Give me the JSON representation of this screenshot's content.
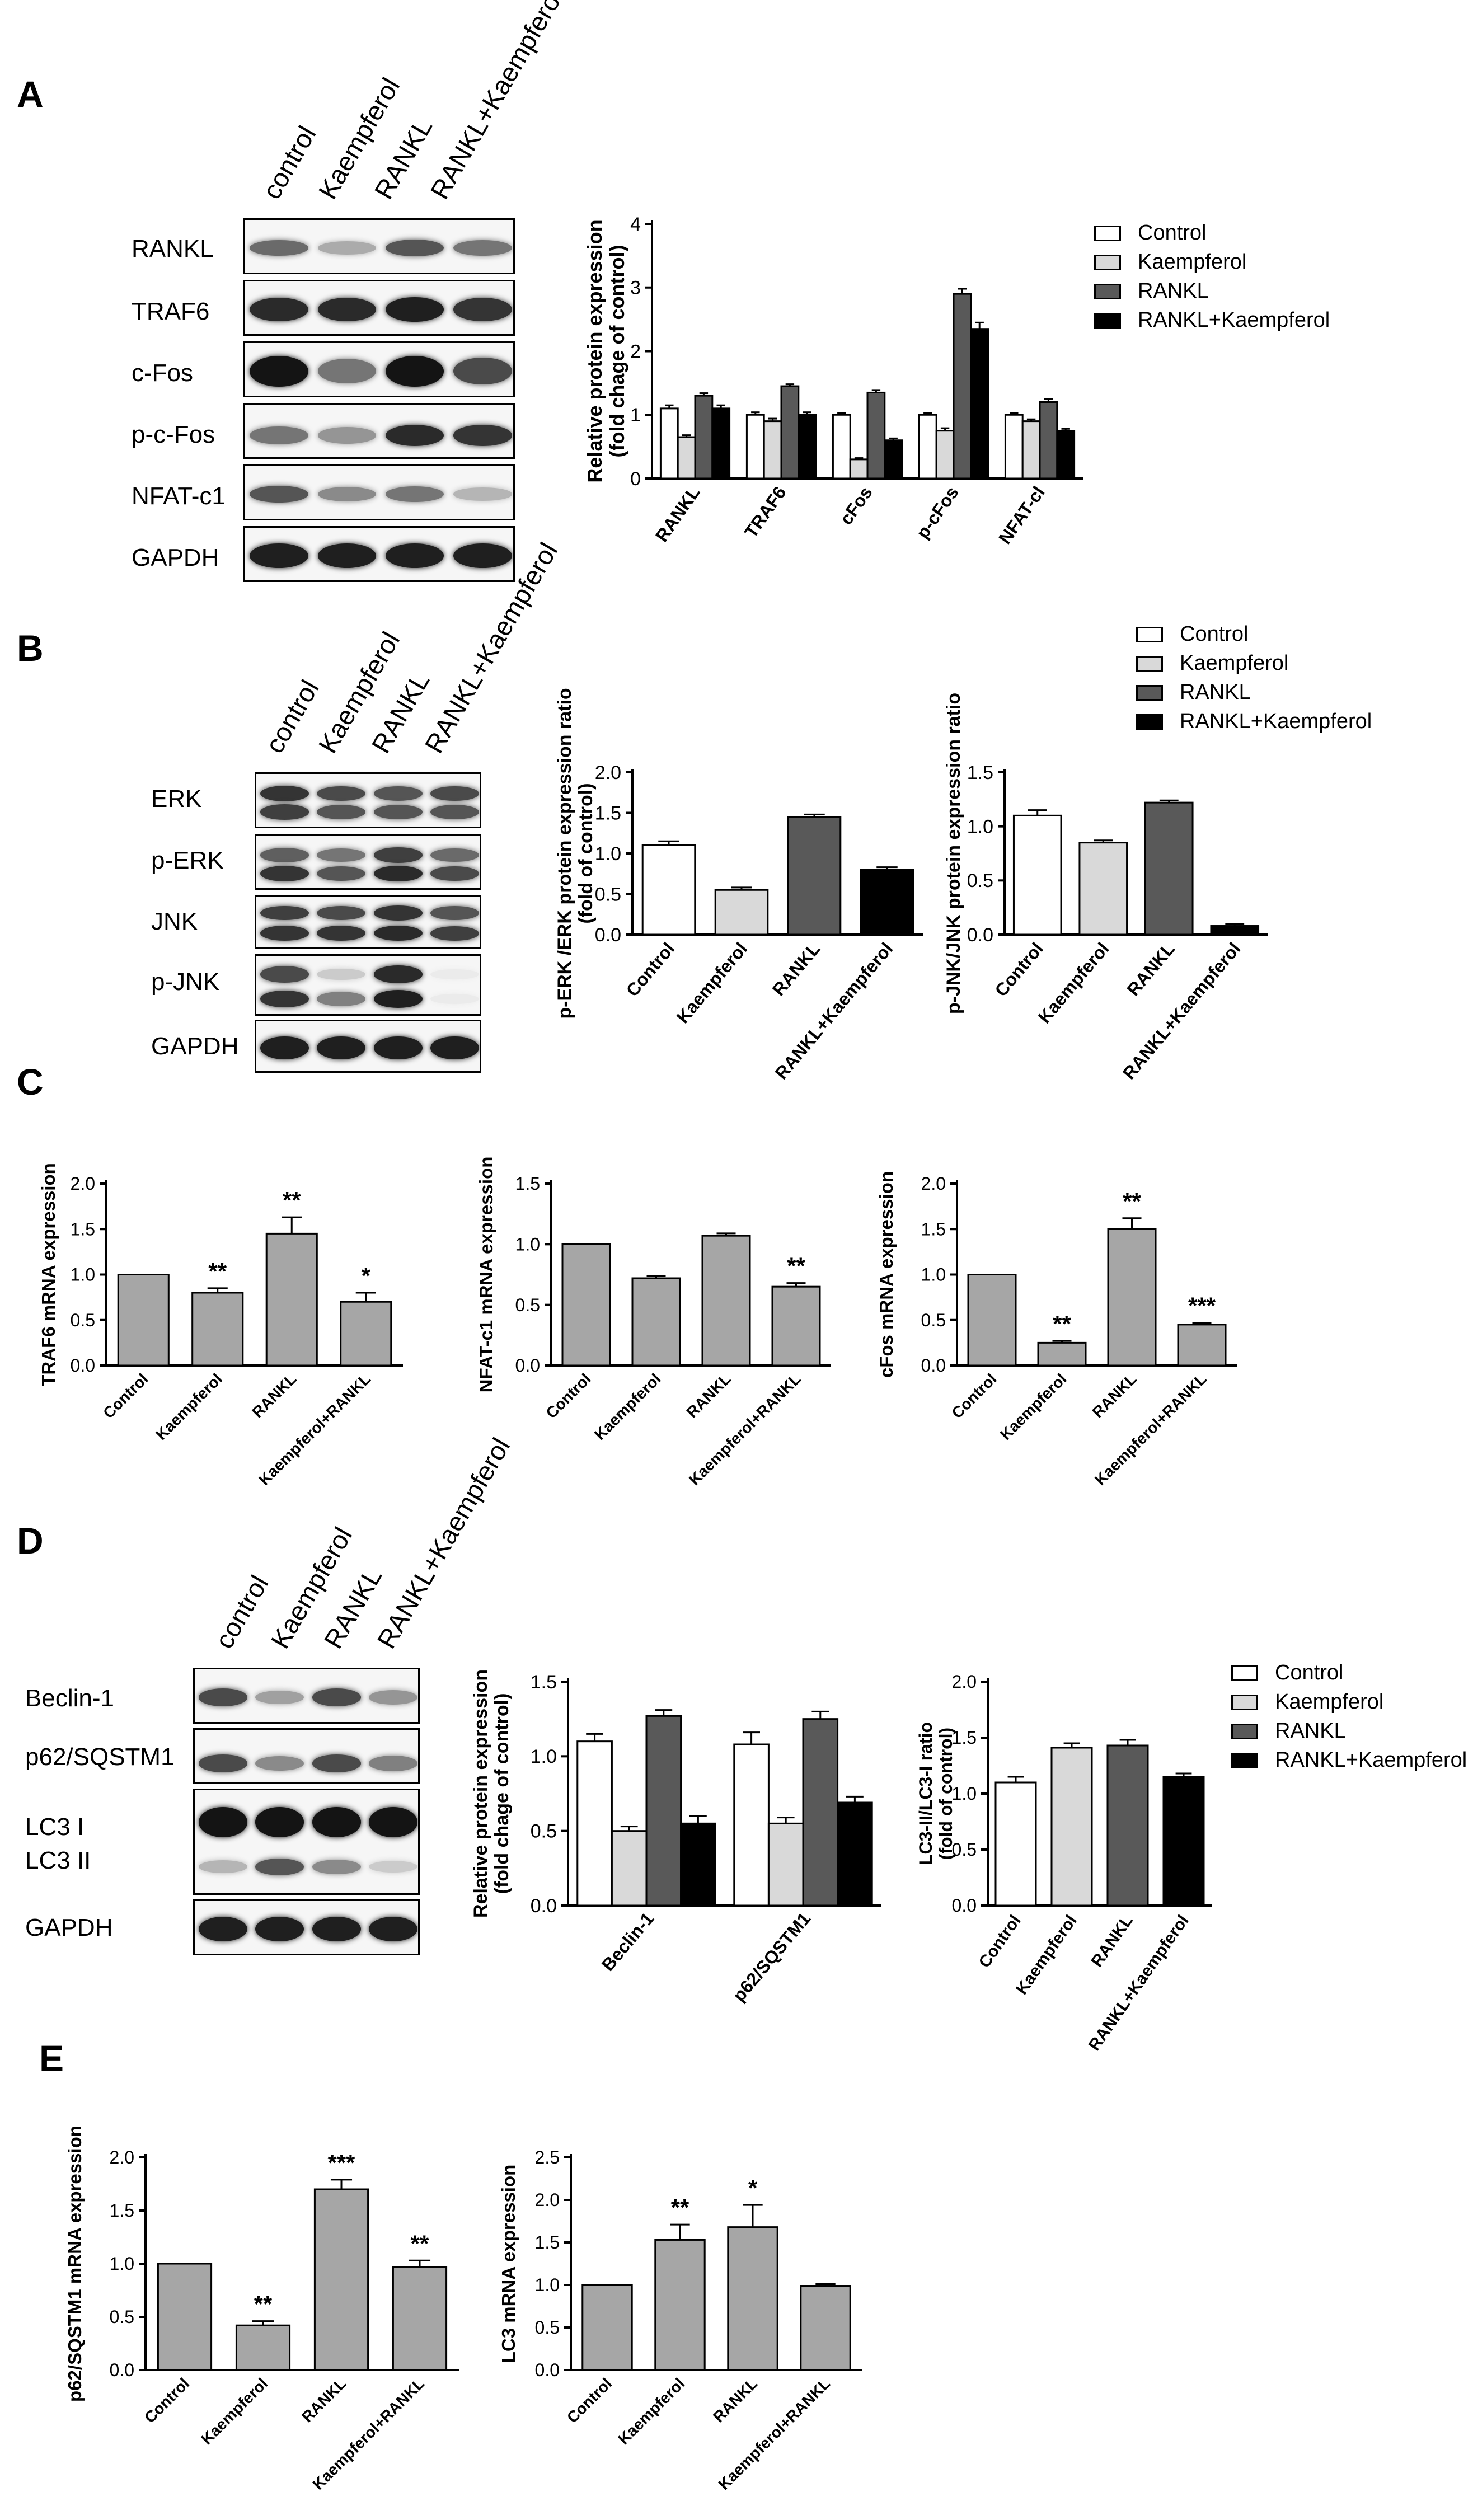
{
  "panels": {
    "A": {
      "letter": "A",
      "lanes": [
        "control",
        "Kaempferol",
        "RANKL",
        "RANKL+Kaempferol"
      ],
      "rows": [
        "RANKL",
        "TRAF6",
        "c-Fos",
        "p-c-Fos",
        "NFAT-c1",
        "GAPDH"
      ],
      "legend": [
        "Control",
        "Kaempferol",
        "RANKL",
        "RANKL+Kaempferol"
      ]
    },
    "B": {
      "letter": "B",
      "lanes": [
        "control",
        "Kaempferol",
        "RANKL",
        "RANKL+Kaempferol"
      ],
      "rows": [
        "ERK",
        "p-ERK",
        "JNK",
        "p-JNK",
        "GAPDH"
      ],
      "legend": [
        "Control",
        "Kaempferol",
        "RANKL",
        "RANKL+Kaempferol"
      ]
    },
    "C": {
      "letter": "C"
    },
    "D": {
      "letter": "D",
      "lanes": [
        "control",
        "Kaempferol",
        "RANKL",
        "RANKL+Kaempferol"
      ],
      "rows": [
        "Beclin-1",
        "p62/SQSTM1",
        "LC3 I",
        "LC3 II",
        "GAPDH"
      ],
      "legend": [
        "Control",
        "Kaempferol",
        "RANKL",
        "RANKL+Kaempferol"
      ]
    },
    "E": {
      "letter": "E"
    }
  },
  "colors": {
    "control": "#ffffff",
    "kaempferol": "#d9d9d9",
    "rankl": "#595959",
    "rankl_kaempferol": "#000000",
    "mrna_bar": "#a6a6a6"
  },
  "chart_data": [
    {
      "id": "A-protein",
      "type": "bar",
      "categories": [
        "RANKL",
        "TRAF6",
        "cFos",
        "p-cFos",
        "NFAT-cl"
      ],
      "series": [
        {
          "name": "Control",
          "values": [
            1.1,
            1.0,
            1.0,
            1.0,
            1.0
          ],
          "errors": [
            0.05,
            0.04,
            0.03,
            0.03,
            0.03
          ]
        },
        {
          "name": "Kaempferol",
          "values": [
            0.65,
            0.9,
            0.3,
            0.75,
            0.9
          ],
          "errors": [
            0.03,
            0.04,
            0.02,
            0.04,
            0.03
          ]
        },
        {
          "name": "RANKL",
          "values": [
            1.3,
            1.45,
            1.35,
            2.9,
            1.2
          ],
          "errors": [
            0.04,
            0.03,
            0.04,
            0.08,
            0.05
          ]
        },
        {
          "name": "RANKL+Kaempferol",
          "values": [
            1.1,
            1.0,
            0.6,
            2.35,
            0.75
          ],
          "errors": [
            0.05,
            0.04,
            0.03,
            0.1,
            0.03
          ]
        }
      ],
      "ylabel": "Relative protein expression (fold chage of control)",
      "ylim": [
        0,
        4
      ],
      "yticks": [
        0,
        1,
        2,
        3,
        4
      ]
    },
    {
      "id": "B-pERK",
      "type": "bar",
      "categories": [
        "Control",
        "Kaempferol",
        "RANKL",
        "RANKL+Kaempferol"
      ],
      "values": [
        1.1,
        0.55,
        1.45,
        0.8
      ],
      "errors": [
        0.05,
        0.03,
        0.03,
        0.03
      ],
      "ylabel": "p-ERK /ERK protein expression ratio (fold of control)",
      "ylim": [
        0,
        2.0
      ],
      "yticks": [
        "0.0",
        "0.5",
        "1.0",
        "1.5",
        "2.0"
      ]
    },
    {
      "id": "B-pJNK",
      "type": "bar",
      "categories": [
        "Control",
        "Kaempferol",
        "RANKL",
        "RANKL+Kaempferol"
      ],
      "values": [
        1.1,
        0.85,
        1.22,
        0.08
      ],
      "errors": [
        0.05,
        0.02,
        0.02,
        0.02
      ],
      "ylabel": "p-JNK/JNK protein expression ratio",
      "ylim": [
        0,
        1.5
      ],
      "yticks": [
        "0.0",
        "0.5",
        "1.0",
        "1.5"
      ]
    },
    {
      "id": "C-TRAF6",
      "type": "bar",
      "categories": [
        "Control",
        "Kaempferol",
        "RANKL",
        "Kaempferol+RANKL"
      ],
      "values": [
        1.0,
        0.8,
        1.45,
        0.7
      ],
      "errors": [
        0.0,
        0.05,
        0.18,
        0.1
      ],
      "annotations": [
        "",
        "**",
        "**",
        "*"
      ],
      "ylabel": "TRAF6 mRNA expression",
      "ylim": [
        0,
        2.0
      ],
      "yticks": [
        "0.0",
        "0.5",
        "1.0",
        "1.5",
        "2.0"
      ]
    },
    {
      "id": "C-NFATc1",
      "type": "bar",
      "categories": [
        "Control",
        "Kaempferol",
        "RANKL",
        "Kaempferol+RANKL"
      ],
      "values": [
        1.0,
        0.72,
        1.07,
        0.65
      ],
      "errors": [
        0.0,
        0.02,
        0.02,
        0.03
      ],
      "annotations": [
        "",
        "",
        "",
        "**"
      ],
      "ylabel": "NFAT-c1 mRNA expression",
      "ylim": [
        0,
        1.5
      ],
      "yticks": [
        "0.0",
        "0.5",
        "1.0",
        "1.5"
      ]
    },
    {
      "id": "C-cFos",
      "type": "bar",
      "categories": [
        "Control",
        "Kaempferol",
        "RANKL",
        "Kaempferol+RANKL"
      ],
      "values": [
        1.0,
        0.25,
        1.5,
        0.45
      ],
      "errors": [
        0.0,
        0.02,
        0.12,
        0.02
      ],
      "annotations": [
        "",
        "**",
        "**",
        "***"
      ],
      "ylabel": "cFos mRNA expression",
      "ylim": [
        0,
        2.0
      ],
      "yticks": [
        "0.0",
        "0.5",
        "1.0",
        "1.5",
        "2.0"
      ]
    },
    {
      "id": "D-protein",
      "type": "bar",
      "categories": [
        "Beclin-1",
        "p62/SQSTM1"
      ],
      "series": [
        {
          "name": "Control",
          "values": [
            1.1,
            1.08
          ],
          "errors": [
            0.05,
            0.08
          ]
        },
        {
          "name": "Kaempferol",
          "values": [
            0.5,
            0.55
          ],
          "errors": [
            0.03,
            0.04
          ]
        },
        {
          "name": "RANKL",
          "values": [
            1.27,
            1.25
          ],
          "errors": [
            0.04,
            0.05
          ]
        },
        {
          "name": "RANKL+Kaempferol",
          "values": [
            0.55,
            0.69
          ],
          "errors": [
            0.05,
            0.04
          ]
        }
      ],
      "ylabel": "Relative protein expression (fold chage of control)",
      "ylim": [
        0,
        1.5
      ],
      "yticks": [
        "0.0",
        "0.5",
        "1.0",
        "1.5"
      ]
    },
    {
      "id": "D-LC3",
      "type": "bar",
      "categories": [
        "Control",
        "Kaempferol",
        "RANKL",
        "RANKL+Kaempferol"
      ],
      "values": [
        1.1,
        1.41,
        1.43,
        1.15
      ],
      "errors": [
        0.05,
        0.04,
        0.05,
        0.03
      ],
      "ylabel": "LC3-II/LC3-I ratio (fold of control)",
      "ylim": [
        0,
        2.0
      ],
      "yticks": [
        "0.0",
        "0.5",
        "1.0",
        "1.5",
        "2.0"
      ]
    },
    {
      "id": "E-p62",
      "type": "bar",
      "categories": [
        "Control",
        "Kaempferol",
        "RANKL",
        "Kaempferol+RANKL"
      ],
      "values": [
        1.0,
        0.42,
        1.7,
        0.97
      ],
      "errors": [
        0.0,
        0.04,
        0.09,
        0.06
      ],
      "annotations": [
        "",
        "**",
        "***",
        "**"
      ],
      "ylabel": "p62/SQSTM1 mRNA expression",
      "ylim": [
        0,
        2.0
      ],
      "yticks": [
        "0.0",
        "0.5",
        "1.0",
        "1.5",
        "2.0"
      ]
    },
    {
      "id": "E-LC3",
      "type": "bar",
      "categories": [
        "Control",
        "Kaempferol",
        "RANKL",
        "Kaempferol+RANKL"
      ],
      "values": [
        1.0,
        1.53,
        1.68,
        0.99
      ],
      "errors": [
        0.0,
        0.18,
        0.26,
        0.02
      ],
      "annotations": [
        "",
        "**",
        "*",
        ""
      ],
      "ylabel": "LC3 mRNA expression",
      "ylim": [
        0,
        2.5
      ],
      "yticks": [
        "0.0",
        "0.5",
        "1.0",
        "1.5",
        "2.0",
        "2.5"
      ]
    }
  ]
}
